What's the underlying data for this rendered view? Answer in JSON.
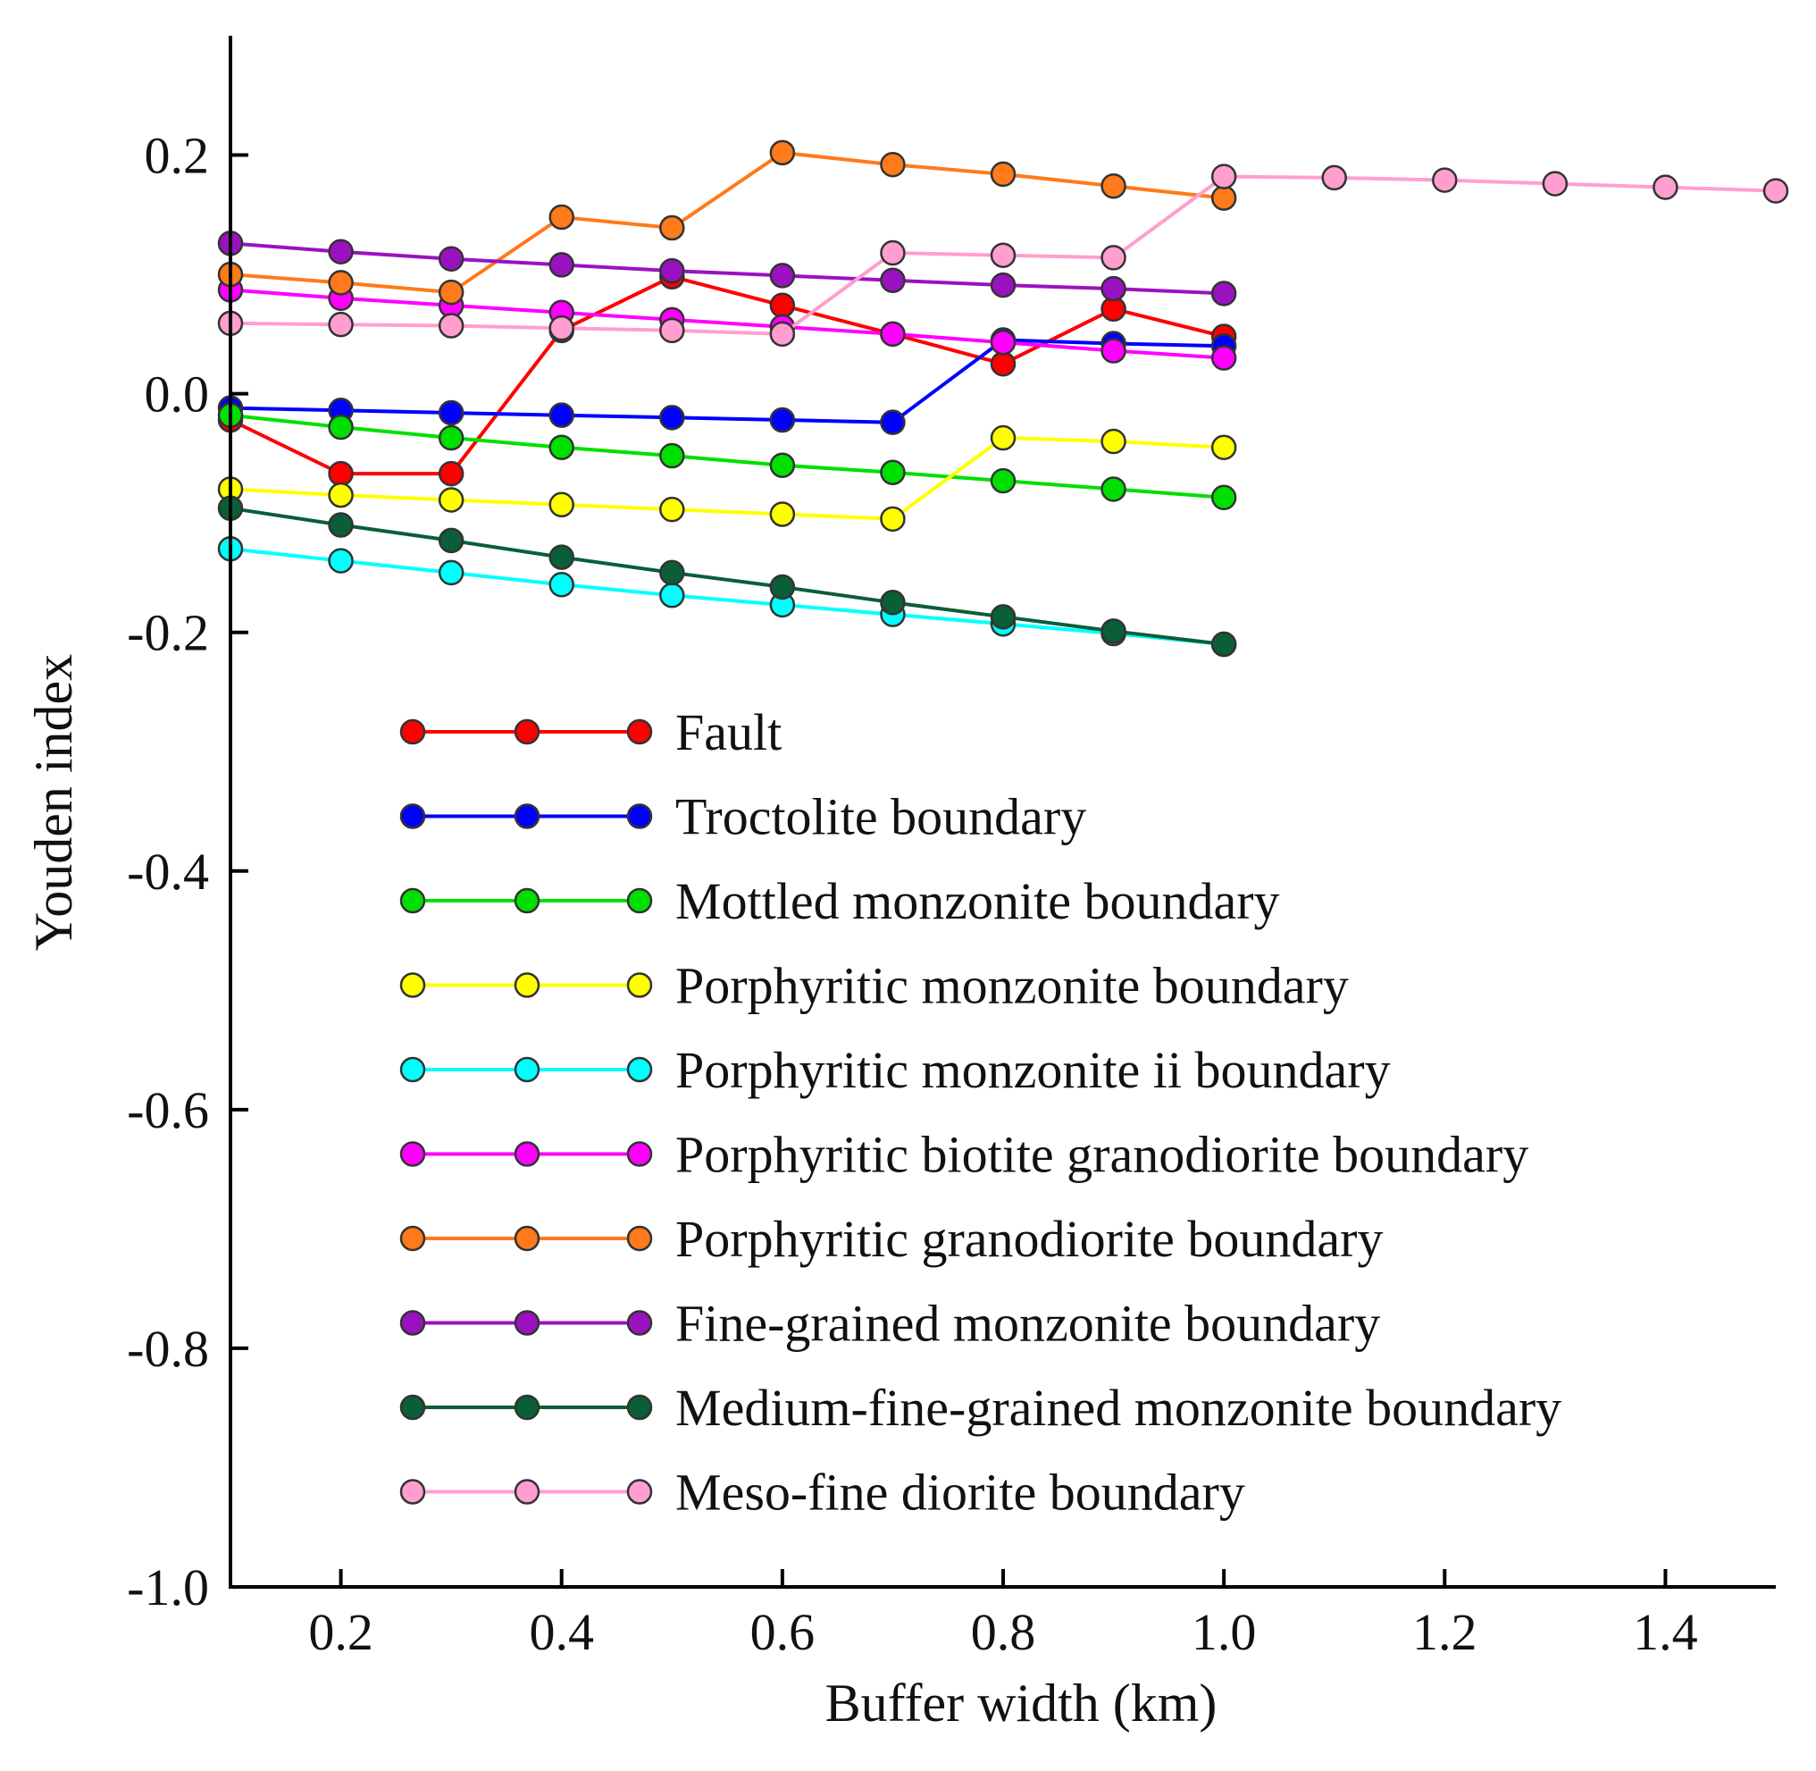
{
  "chart_data": {
    "type": "line",
    "title": "",
    "xlabel": "Buffer width (km)",
    "ylabel": "Youden index",
    "xlim": [
      0.1,
      1.5
    ],
    "ylim": [
      -1.0,
      0.3
    ],
    "xticks": [
      {
        "value": 0.2,
        "label": "0.2"
      },
      {
        "value": 0.4,
        "label": "0.4"
      },
      {
        "value": 0.6,
        "label": "0.6"
      },
      {
        "value": 0.8,
        "label": "0.8"
      },
      {
        "value": 1.0,
        "label": "1.0"
      },
      {
        "value": 1.2,
        "label": "1.2"
      },
      {
        "value": 1.4,
        "label": "1.4"
      }
    ],
    "yticks": [
      {
        "value": 0.2,
        "label": "0.2"
      },
      {
        "value": 0.0,
        "label": "0.0"
      },
      {
        "value": -0.2,
        "label": "-0.2"
      },
      {
        "value": -0.4,
        "label": "-0.4"
      },
      {
        "value": -0.6,
        "label": "-0.6"
      },
      {
        "value": -0.8,
        "label": "-0.8"
      },
      {
        "value": -1.0,
        "label": "-1.0"
      }
    ],
    "grid": false,
    "legend_position": "lower-center",
    "series": [
      {
        "name": "Fault",
        "color": "#ff0000",
        "x": [
          0.1,
          0.2,
          0.3,
          0.4,
          0.5,
          0.6,
          0.7,
          0.8,
          0.9,
          1.0
        ],
        "y": [
          -0.022,
          -0.067,
          -0.067,
          0.053,
          0.098,
          0.074,
          0.05,
          0.025,
          0.071,
          0.048
        ]
      },
      {
        "name": "Troctolite boundary",
        "color": "#0000ff",
        "x": [
          0.1,
          0.2,
          0.3,
          0.4,
          0.5,
          0.6,
          0.7,
          0.8,
          0.9,
          1.0
        ],
        "y": [
          -0.012,
          -0.014,
          -0.016,
          -0.018,
          -0.02,
          -0.022,
          -0.024,
          0.045,
          0.042,
          0.04
        ]
      },
      {
        "name": "Mottled monzonite boundary",
        "color": "#00e000",
        "x": [
          0.1,
          0.2,
          0.3,
          0.4,
          0.5,
          0.6,
          0.7,
          0.8,
          0.9,
          1.0
        ],
        "y": [
          -0.018,
          -0.028,
          -0.037,
          -0.045,
          -0.052,
          -0.06,
          -0.066,
          -0.073,
          -0.08,
          -0.087
        ]
      },
      {
        "name": "Porphyritic monzonite boundary",
        "color": "#ffff00",
        "x": [
          0.1,
          0.2,
          0.3,
          0.4,
          0.5,
          0.6,
          0.7,
          0.8,
          0.9,
          1.0
        ],
        "y": [
          -0.08,
          -0.085,
          -0.089,
          -0.093,
          -0.097,
          -0.101,
          -0.105,
          -0.037,
          -0.04,
          -0.045
        ]
      },
      {
        "name": "Porphyritic monzonite ii boundary",
        "color": "#00ffff",
        "x": [
          0.1,
          0.2,
          0.3,
          0.4,
          0.5,
          0.6,
          0.7,
          0.8,
          0.9,
          1.0
        ],
        "y": [
          -0.13,
          -0.14,
          -0.15,
          -0.16,
          -0.169,
          -0.177,
          -0.185,
          -0.193,
          -0.201,
          -0.21
        ]
      },
      {
        "name": "Porphyritic biotite granodiorite boundary",
        "color": "#ff00ff",
        "x": [
          0.1,
          0.2,
          0.3,
          0.4,
          0.5,
          0.6,
          0.7,
          0.8,
          0.9,
          1.0
        ],
        "y": [
          0.087,
          0.08,
          0.074,
          0.068,
          0.062,
          0.056,
          0.05,
          0.043,
          0.036,
          0.03
        ]
      },
      {
        "name": "Porphyritic granodiorite boundary",
        "color": "#ff7a1a",
        "x": [
          0.1,
          0.2,
          0.3,
          0.4,
          0.5,
          0.6,
          0.7,
          0.8,
          0.9,
          1.0
        ],
        "y": [
          0.1,
          0.093,
          0.085,
          0.148,
          0.139,
          0.202,
          0.192,
          0.184,
          0.174,
          0.164
        ]
      },
      {
        "name": "Fine-grained monzonite boundary",
        "color": "#9a12c0",
        "x": [
          0.1,
          0.2,
          0.3,
          0.4,
          0.5,
          0.6,
          0.7,
          0.8,
          0.9,
          1.0
        ],
        "y": [
          0.126,
          0.119,
          0.113,
          0.108,
          0.103,
          0.099,
          0.095,
          0.091,
          0.088,
          0.084
        ]
      },
      {
        "name": "Medium-fine-grained monzonite boundary",
        "color": "#0a5e38",
        "x": [
          0.1,
          0.2,
          0.3,
          0.4,
          0.5,
          0.6,
          0.7,
          0.8,
          0.9,
          1.0
        ],
        "y": [
          -0.096,
          -0.11,
          -0.123,
          -0.137,
          -0.15,
          -0.162,
          -0.175,
          -0.187,
          -0.199,
          -0.21
        ]
      },
      {
        "name": "Meso-fine diorite boundary",
        "color": "#ff9ecf",
        "x": [
          0.1,
          0.2,
          0.3,
          0.4,
          0.5,
          0.6,
          0.7,
          0.8,
          0.9,
          1.0,
          1.1,
          1.2,
          1.3,
          1.4,
          1.5
        ],
        "y": [
          0.059,
          0.058,
          0.057,
          0.055,
          0.053,
          0.05,
          0.118,
          0.116,
          0.114,
          0.182,
          0.181,
          0.179,
          0.176,
          0.173,
          0.17
        ]
      }
    ]
  }
}
